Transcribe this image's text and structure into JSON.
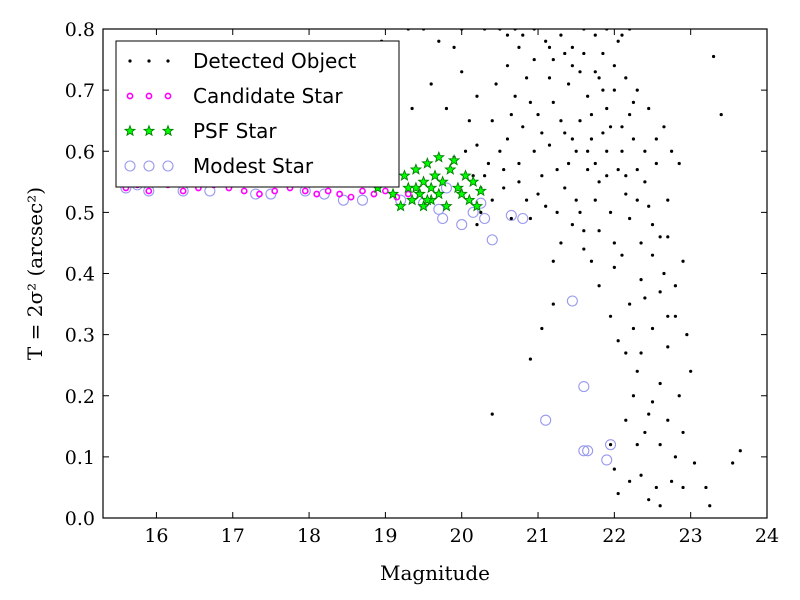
{
  "chart_data": {
    "type": "scatter",
    "xlabel": "Magnitude",
    "ylabel": "T = 2σ² (arcsec²)",
    "xlim": [
      15.3,
      24
    ],
    "ylim": [
      0.0,
      0.8
    ],
    "xticks": [
      "16",
      "17",
      "18",
      "19",
      "20",
      "21",
      "22",
      "23",
      "24"
    ],
    "yticks": [
      "0.0",
      "0.1",
      "0.2",
      "0.3",
      "0.4",
      "0.5",
      "0.6",
      "0.7",
      "0.8"
    ],
    "grid": false,
    "legend": {
      "position": "top-left",
      "entries": [
        {
          "label": "Detected Object",
          "marker": "dot",
          "color": "#000000"
        },
        {
          "label": "Candidate Star",
          "marker": "circle-small",
          "color": "#ff00ff"
        },
        {
          "label": "PSF Star",
          "marker": "star",
          "color": "#008000"
        },
        {
          "label": "Modest Star",
          "marker": "circle-open",
          "color": "#9999ee"
        }
      ]
    },
    "series": [
      {
        "name": "Detected Object",
        "color": "#000000",
        "points": [
          [
            20.4,
            0.17
          ],
          [
            20.9,
            0.26
          ],
          [
            21.05,
            0.31
          ],
          [
            21.2,
            0.35
          ],
          [
            21.2,
            0.42
          ],
          [
            21.95,
            0.12
          ],
          [
            22.0,
            0.08
          ],
          [
            22.2,
            0.06
          ],
          [
            22.3,
            0.12
          ],
          [
            22.45,
            0.03
          ],
          [
            22.55,
            0.05
          ],
          [
            22.6,
            0.02
          ],
          [
            22.75,
            0.06
          ],
          [
            22.9,
            0.05
          ],
          [
            23.05,
            0.09
          ],
          [
            23.2,
            0.05
          ],
          [
            23.25,
            0.02
          ],
          [
            23.55,
            0.09
          ],
          [
            23.65,
            0.11
          ],
          [
            23.3,
            0.755
          ],
          [
            23.4,
            0.66
          ],
          [
            22.95,
            0.3
          ],
          [
            23.0,
            0.24
          ],
          [
            22.85,
            0.2
          ],
          [
            22.7,
            0.28
          ],
          [
            22.6,
            0.22
          ],
          [
            22.45,
            0.17
          ],
          [
            22.3,
            0.24
          ],
          [
            22.8,
            0.33
          ],
          [
            22.65,
            0.4
          ],
          [
            22.9,
            0.42
          ],
          [
            22.85,
            0.58
          ],
          [
            22.75,
            0.6
          ],
          [
            22.5,
            0.48
          ],
          [
            22.4,
            0.36
          ],
          [
            21.9,
            0.8
          ],
          [
            22.1,
            0.79
          ],
          [
            22.2,
            0.8
          ],
          [
            20.5,
            0.8
          ],
          [
            20.7,
            0.8
          ],
          [
            20.8,
            0.79
          ],
          [
            20.3,
            0.8
          ],
          [
            20.0,
            0.8
          ],
          [
            19.9,
            0.77
          ],
          [
            19.7,
            0.78
          ],
          [
            19.5,
            0.8
          ],
          [
            19.3,
            0.8
          ],
          [
            19.1,
            0.75
          ],
          [
            18.95,
            0.78
          ],
          [
            19.35,
            0.67
          ],
          [
            19.6,
            0.71
          ],
          [
            19.8,
            0.67
          ],
          [
            20.05,
            0.6
          ],
          [
            20.15,
            0.56
          ],
          [
            20.2,
            0.61
          ],
          [
            20.35,
            0.58
          ],
          [
            20.55,
            0.57
          ],
          [
            20.75,
            0.55
          ],
          [
            21.0,
            0.53
          ],
          [
            21.1,
            0.51
          ],
          [
            20.9,
            0.49
          ],
          [
            20.65,
            0.49
          ],
          [
            20.25,
            0.5
          ],
          [
            20.2,
            0.48
          ],
          [
            21.3,
            0.45
          ],
          [
            21.5,
            0.52
          ],
          [
            21.6,
            0.47
          ],
          [
            21.4,
            0.58
          ],
          [
            21.7,
            0.42
          ],
          [
            21.8,
            0.38
          ],
          [
            21.95,
            0.33
          ],
          [
            22.05,
            0.29
          ],
          [
            22.15,
            0.27
          ],
          [
            22.25,
            0.31
          ],
          [
            22.35,
            0.27
          ],
          [
            22.0,
            0.45
          ],
          [
            22.1,
            0.43
          ],
          [
            22.2,
            0.49
          ],
          [
            22.3,
            0.52
          ],
          [
            22.4,
            0.55
          ],
          [
            22.55,
            0.58
          ],
          [
            22.65,
            0.64
          ],
          [
            22.45,
            0.67
          ],
          [
            22.3,
            0.7
          ],
          [
            22.15,
            0.72
          ],
          [
            22.0,
            0.74
          ],
          [
            21.85,
            0.7
          ],
          [
            21.75,
            0.73
          ],
          [
            21.6,
            0.76
          ],
          [
            21.45,
            0.77
          ],
          [
            21.3,
            0.79
          ],
          [
            21.1,
            0.78
          ],
          [
            20.95,
            0.75
          ],
          [
            20.85,
            0.72
          ],
          [
            20.7,
            0.69
          ],
          [
            20.6,
            0.74
          ],
          [
            20.45,
            0.71
          ],
          [
            20.4,
            0.65
          ],
          [
            20.6,
            0.62
          ],
          [
            20.8,
            0.64
          ],
          [
            21.0,
            0.66
          ],
          [
            21.2,
            0.68
          ],
          [
            21.35,
            0.63
          ],
          [
            21.55,
            0.65
          ],
          [
            21.7,
            0.62
          ],
          [
            21.9,
            0.6
          ],
          [
            22.05,
            0.57
          ],
          [
            22.25,
            0.62
          ],
          [
            21.8,
            0.55
          ],
          [
            21.65,
            0.57
          ],
          [
            21.5,
            0.6
          ],
          [
            21.25,
            0.57
          ],
          [
            21.15,
            0.61
          ],
          [
            20.95,
            0.6
          ],
          [
            20.75,
            0.58
          ],
          [
            20.55,
            0.54
          ],
          [
            20.4,
            0.52
          ],
          [
            20.85,
            0.52
          ],
          [
            21.05,
            0.56
          ],
          [
            21.35,
            0.54
          ],
          [
            21.55,
            0.5
          ],
          [
            21.75,
            0.52
          ],
          [
            21.95,
            0.5
          ],
          [
            22.15,
            0.53
          ],
          [
            22.0,
            0.41
          ],
          [
            22.35,
            0.45
          ],
          [
            22.5,
            0.43
          ],
          [
            22.7,
            0.46
          ],
          [
            22.6,
            0.37
          ],
          [
            22.8,
            0.38
          ],
          [
            22.7,
            0.52
          ],
          [
            22.55,
            0.62
          ],
          [
            22.4,
            0.6
          ],
          [
            22.2,
            0.66
          ],
          [
            21.9,
            0.67
          ],
          [
            21.65,
            0.69
          ],
          [
            21.4,
            0.71
          ],
          [
            21.15,
            0.72
          ],
          [
            20.9,
            0.68
          ],
          [
            20.65,
            0.66
          ],
          [
            20.5,
            0.6
          ],
          [
            20.3,
            0.56
          ],
          [
            21.45,
            0.74
          ],
          [
            21.85,
            0.76
          ],
          [
            22.05,
            0.78
          ],
          [
            21.2,
            0.75
          ],
          [
            21.6,
            0.8
          ],
          [
            21.75,
            0.79
          ],
          [
            21.3,
            0.65
          ],
          [
            21.05,
            0.63
          ],
          [
            21.7,
            0.66
          ],
          [
            21.85,
            0.63
          ],
          [
            22.1,
            0.64
          ],
          [
            22.3,
            0.57
          ],
          [
            22.45,
            0.51
          ],
          [
            22.6,
            0.46
          ],
          [
            22.35,
            0.39
          ],
          [
            22.2,
            0.35
          ],
          [
            22.5,
            0.31
          ],
          [
            22.7,
            0.33
          ],
          [
            22.25,
            0.2
          ],
          [
            22.15,
            0.16
          ],
          [
            22.4,
            0.14
          ],
          [
            22.6,
            0.12
          ],
          [
            22.8,
            0.1
          ],
          [
            22.9,
            0.14
          ],
          [
            22.7,
            0.16
          ],
          [
            22.5,
            0.19
          ],
          [
            22.35,
            0.07
          ],
          [
            22.05,
            0.04
          ],
          [
            21.8,
            0.47
          ],
          [
            21.6,
            0.44
          ],
          [
            21.45,
            0.48
          ],
          [
            21.25,
            0.5
          ],
          [
            21.9,
            0.56
          ],
          [
            22.1,
            0.6
          ],
          [
            22.25,
            0.68
          ],
          [
            22.0,
            0.7
          ],
          [
            21.8,
            0.72
          ],
          [
            21.55,
            0.73
          ],
          [
            21.35,
            0.76
          ],
          [
            21.15,
            0.77
          ],
          [
            20.95,
            0.8
          ],
          [
            20.75,
            0.77
          ],
          [
            20.6,
            0.79
          ],
          [
            21.65,
            0.6
          ],
          [
            21.45,
            0.62
          ],
          [
            21.95,
            0.64
          ],
          [
            22.15,
            0.56
          ],
          [
            21.75,
            0.58
          ],
          [
            20.25,
            0.54
          ],
          [
            19.9,
            0.59
          ],
          [
            20.1,
            0.65
          ],
          [
            20.2,
            0.69
          ],
          [
            20.0,
            0.73
          ]
        ]
      },
      {
        "name": "Candidate Star",
        "color": "#ff00ff",
        "points": [
          [
            15.6,
            0.54
          ],
          [
            15.75,
            0.545
          ],
          [
            15.9,
            0.535
          ],
          [
            16.15,
            0.545
          ],
          [
            16.35,
            0.535
          ],
          [
            16.55,
            0.54
          ],
          [
            16.75,
            0.545
          ],
          [
            16.95,
            0.54
          ],
          [
            17.15,
            0.535
          ],
          [
            17.35,
            0.53
          ],
          [
            17.55,
            0.535
          ],
          [
            17.75,
            0.54
          ],
          [
            17.95,
            0.535
          ],
          [
            18.1,
            0.53
          ],
          [
            18.25,
            0.535
          ],
          [
            18.4,
            0.53
          ],
          [
            18.55,
            0.525
          ],
          [
            18.7,
            0.535
          ],
          [
            18.85,
            0.53
          ],
          [
            19.0,
            0.535
          ],
          [
            19.15,
            0.525
          ],
          [
            19.3,
            0.53
          ]
        ]
      },
      {
        "name": "PSF Star",
        "color": "#008000",
        "points": [
          [
            18.9,
            0.54
          ],
          [
            19.0,
            0.55
          ],
          [
            19.1,
            0.53
          ],
          [
            19.2,
            0.51
          ],
          [
            19.25,
            0.56
          ],
          [
            19.3,
            0.54
          ],
          [
            19.35,
            0.52
          ],
          [
            19.4,
            0.57
          ],
          [
            19.45,
            0.53
          ],
          [
            19.5,
            0.55
          ],
          [
            19.5,
            0.51
          ],
          [
            19.55,
            0.58
          ],
          [
            19.6,
            0.54
          ],
          [
            19.6,
            0.52
          ],
          [
            19.65,
            0.56
          ],
          [
            19.7,
            0.53
          ],
          [
            19.7,
            0.59
          ],
          [
            19.75,
            0.55
          ],
          [
            19.8,
            0.51
          ],
          [
            19.85,
            0.57
          ],
          [
            19.9,
            0.585
          ],
          [
            19.95,
            0.54
          ],
          [
            20.0,
            0.53
          ],
          [
            20.05,
            0.56
          ],
          [
            20.1,
            0.52
          ],
          [
            20.15,
            0.55
          ],
          [
            20.2,
            0.51
          ],
          [
            20.25,
            0.535
          ],
          [
            19.55,
            0.52
          ],
          [
            19.4,
            0.54
          ]
        ]
      },
      {
        "name": "Modest Star",
        "color": "#9999ee",
        "points": [
          [
            15.6,
            0.54
          ],
          [
            15.75,
            0.545
          ],
          [
            15.9,
            0.535
          ],
          [
            16.35,
            0.535
          ],
          [
            16.7,
            0.535
          ],
          [
            17.3,
            0.53
          ],
          [
            17.5,
            0.53
          ],
          [
            17.95,
            0.535
          ],
          [
            18.2,
            0.53
          ],
          [
            18.45,
            0.52
          ],
          [
            18.7,
            0.52
          ],
          [
            19.2,
            0.52
          ],
          [
            19.5,
            0.515
          ],
          [
            19.7,
            0.505
          ],
          [
            19.75,
            0.49
          ],
          [
            19.8,
            0.54
          ],
          [
            20.0,
            0.48
          ],
          [
            20.15,
            0.5
          ],
          [
            20.3,
            0.49
          ],
          [
            20.4,
            0.455
          ],
          [
            20.65,
            0.495
          ],
          [
            20.8,
            0.49
          ],
          [
            21.1,
            0.16
          ],
          [
            21.45,
            0.355
          ],
          [
            21.6,
            0.215
          ],
          [
            21.6,
            0.11
          ],
          [
            21.65,
            0.11
          ],
          [
            21.9,
            0.095
          ],
          [
            21.95,
            0.12
          ],
          [
            20.25,
            0.515
          ]
        ]
      }
    ]
  }
}
